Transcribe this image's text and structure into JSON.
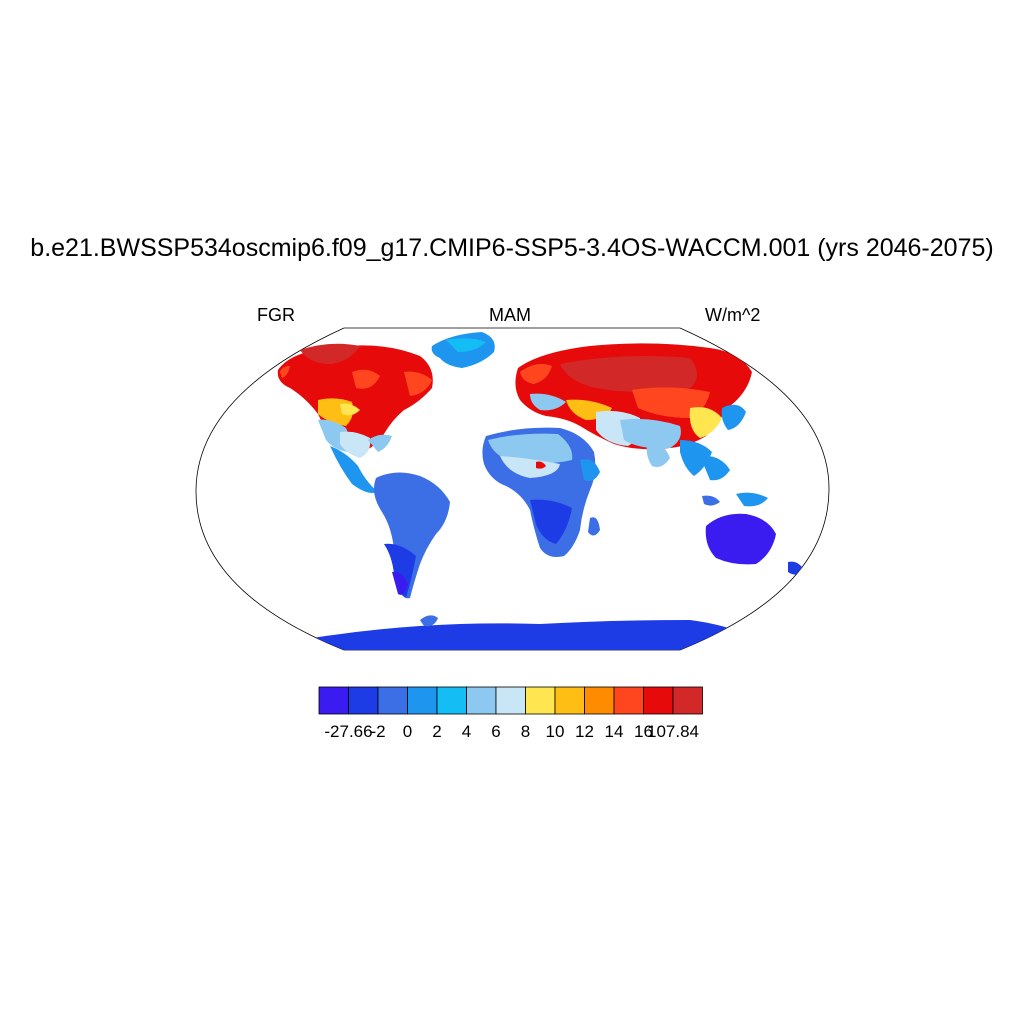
{
  "figure": {
    "title": "b.e21.BWSSP534oscmip6.f09_g17.CMIP6-SSP5-3.4OS-WACCM.001 (yrs 2046-2075)",
    "left_label": "FGR",
    "center_label": "MAM",
    "right_label": "W/m^2",
    "projection": "robinson",
    "land_only": true
  },
  "colorbar": {
    "orientation": "horizontal",
    "tick_labels": [
      "-27.66",
      "-2",
      "0",
      "2",
      "4",
      "6",
      "8",
      "10",
      "12",
      "14",
      "16",
      "107.84"
    ],
    "colors": [
      "#3a1cf0",
      "#1e3ce6",
      "#3c6ee6",
      "#1e96f0",
      "#14bef5",
      "#8cc8f0",
      "#c8e6f5",
      "#ffe650",
      "#ffbe14",
      "#ff8c00",
      "#ff461e",
      "#e60a0a",
      "#d22828"
    ]
  },
  "regions": [
    {
      "name": "north-america-high-latitudes",
      "color": "#e60a0a"
    },
    {
      "name": "eurasia-high-latitudes",
      "color": "#e60a0a"
    },
    {
      "name": "greenland",
      "color": "#1e96f0"
    },
    {
      "name": "south-america",
      "color": "#3c6ee6"
    },
    {
      "name": "africa",
      "color": "#3c6ee6"
    },
    {
      "name": "sahara",
      "color": "#8cc8f0"
    },
    {
      "name": "australia",
      "color": "#3a1cf0"
    },
    {
      "name": "antarctica",
      "color": "#1e3ce6"
    }
  ]
}
